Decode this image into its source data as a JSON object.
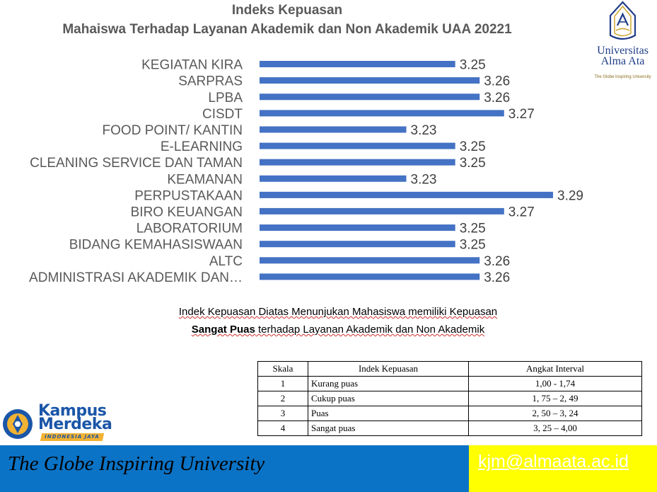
{
  "chart_data": {
    "type": "bar",
    "orientation": "horizontal",
    "title": "Indeks Kepuasan",
    "subtitle": "Mahaiswa Terhadap Layanan Akademik dan Non Akademik UAA 20221",
    "categories": [
      "KEGIATAN KIRA",
      "SARPRAS",
      "LPBA",
      "CISDT",
      "FOOD POINT/ KANTIN",
      "E-LEARNING",
      "CLEANING SERVICE DAN TAMAN",
      "KEAMANAN",
      "PERPUSTAKAAN",
      "BIRO KEUANGAN",
      "LABORATORIUM",
      "BIDANG KEMAHASISWAAN",
      "ALTC",
      "ADMINISTRASI AKADEMIK DAN…"
    ],
    "values": [
      3.25,
      3.26,
      3.26,
      3.27,
      3.23,
      3.25,
      3.25,
      3.23,
      3.29,
      3.27,
      3.25,
      3.25,
      3.26,
      3.26
    ],
    "value_labels": [
      "3.25",
      "3.26",
      "3.26",
      "3.27",
      "3.23",
      "3.25",
      "3.25",
      "3.23",
      "3.29",
      "3.27",
      "3.25",
      "3.25",
      "3.26",
      "3.26"
    ],
    "xlim": [
      3.17,
      3.29
    ],
    "bar_color": "#4472c4",
    "grid": false,
    "legend": "none"
  },
  "logo": {
    "name_line1": "Universitas",
    "name_line2": "Alma Ata",
    "tagline": "The Globe Inspiring University",
    "color": "#1f3c88",
    "accent": "#c9a227"
  },
  "notes": {
    "line1": "Indek Kepuasan Diatas Menunjukan Mahasiswa memiliki Kepuasan",
    "line2_bold": "Sangat Puas",
    "line2_rest": " terhadap Layanan Akademik dan Non Akademik"
  },
  "scale_table": {
    "headers": [
      "Skala",
      "Indek Kepuasan",
      "Angkat Interval"
    ],
    "rows": [
      [
        "1",
        "Kurang puas",
        "1,00 - 1,74"
      ],
      [
        "2",
        "Cukup puas",
        "1, 75 – 2, 49"
      ],
      [
        "3",
        "Puas",
        "2, 50 – 3, 24"
      ],
      [
        "4",
        "Sangat puas",
        "3, 25 – 4,00"
      ]
    ]
  },
  "kampus_merdeka": {
    "line1": "Kampus",
    "line2": "Merdeka",
    "line3": "INDONESIA JAYA",
    "colors": {
      "blue": "#1a56a8",
      "yellow": "#f2b233"
    }
  },
  "footer": {
    "tagline": "The Globe Inspiring University",
    "email": "kjm@almaata.ac.id",
    "colors": {
      "left": "#0a73c6",
      "right": "#ffff00"
    }
  }
}
